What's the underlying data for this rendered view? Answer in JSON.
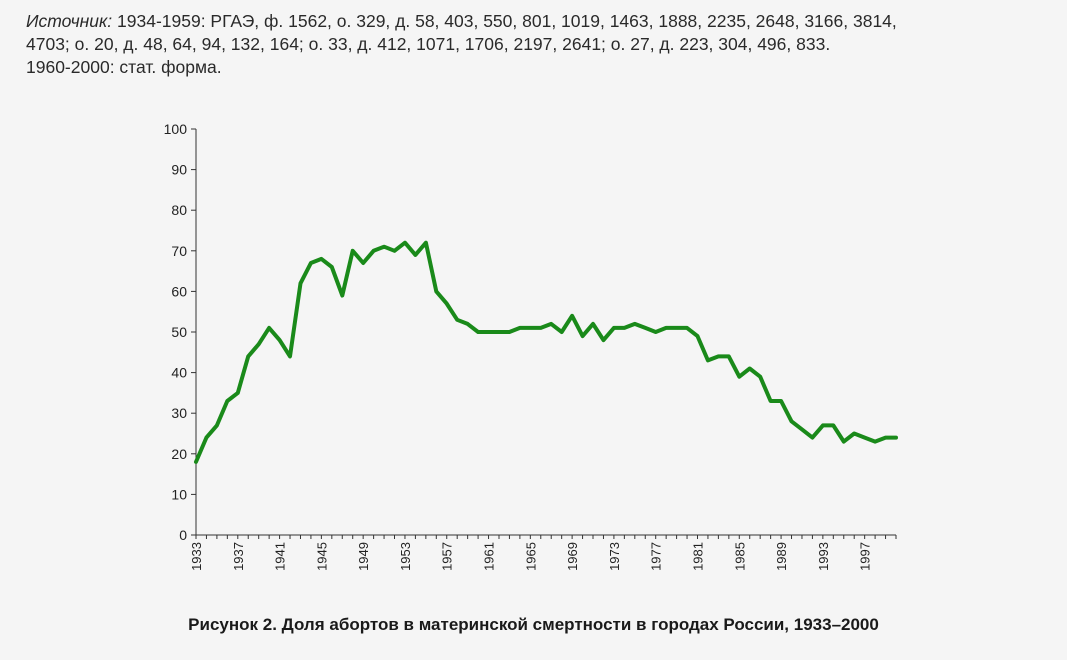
{
  "source": {
    "label": "Источник:",
    "line1": " 1934-1959: РГАЭ, ф. 1562, о. 329, д. 58, 403, 550, 801, 1019, 1463, 1888, 2235, 2648, 3166, 3814,",
    "line2": "4703; о. 20, д. 48, 64, 94, 132, 164; о. 33, д. 412, 1071, 1706, 2197, 2641; о. 27, д. 223, 304, 496, 833.",
    "line3": "1960-2000: стат. форма."
  },
  "caption": "Рисунок 2. Доля абортов в материнской смертности в городах России, 1933–2000",
  "chart_data": {
    "type": "line",
    "title": "",
    "xlabel": "",
    "ylabel": "",
    "ylim": [
      0,
      100
    ],
    "yticks": [
      0,
      10,
      20,
      30,
      40,
      50,
      60,
      70,
      80,
      90,
      100
    ],
    "xlim": [
      1933,
      2000
    ],
    "xtick_labels": [
      "1933",
      "1937",
      "1941",
      "1945",
      "1949",
      "1953",
      "1957",
      "1961",
      "1965",
      "1969",
      "1973",
      "1977",
      "1981",
      "1985",
      "1989",
      "1993",
      "1997"
    ],
    "grid": false,
    "legend": "none",
    "line_color": "#1a8a1a",
    "series": [
      {
        "x": [
          1933,
          1934,
          1935,
          1936,
          1937,
          1938,
          1939,
          1940,
          1941,
          1942,
          1943,
          1944,
          1945,
          1946,
          1947,
          1948,
          1949,
          1950,
          1951,
          1952,
          1953,
          1954,
          1955,
          1956,
          1957,
          1958,
          1959,
          1960,
          1961,
          1962,
          1963,
          1964,
          1965,
          1966,
          1967,
          1968,
          1969,
          1970,
          1971,
          1972,
          1973,
          1974,
          1975,
          1976,
          1977,
          1978,
          1979,
          1980,
          1981,
          1982,
          1983,
          1984,
          1985,
          1986,
          1987,
          1988,
          1989,
          1990,
          1991,
          1992,
          1993,
          1994,
          1995,
          1996,
          1997,
          1998,
          1999,
          2000
        ],
        "values": [
          18,
          24,
          27,
          33,
          35,
          44,
          47,
          51,
          48,
          44,
          62,
          67,
          68,
          66,
          59,
          70,
          67,
          70,
          71,
          70,
          72,
          69,
          72,
          60,
          57,
          53,
          52,
          50,
          50,
          50,
          50,
          51,
          51,
          51,
          52,
          50,
          54,
          49,
          52,
          48,
          51,
          51,
          52,
          51,
          50,
          51,
          51,
          51,
          49,
          43,
          44,
          44,
          39,
          41,
          39,
          33,
          33,
          28,
          26,
          24,
          27,
          27,
          23,
          25,
          24,
          23,
          24,
          24
        ]
      }
    ]
  }
}
